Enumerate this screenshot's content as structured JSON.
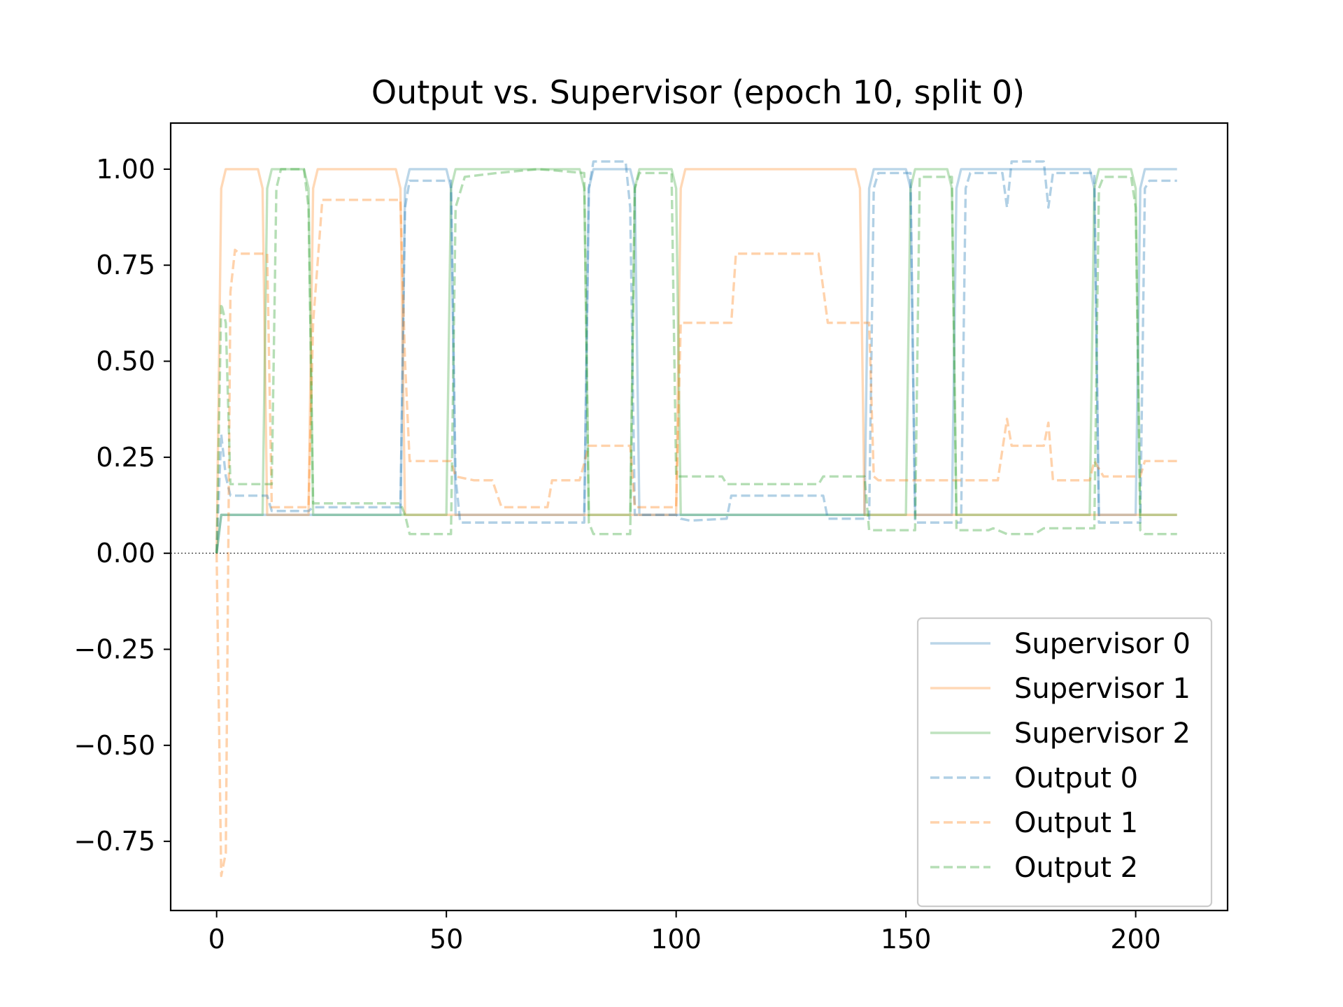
{
  "chart_data": {
    "type": "line",
    "title": "Output vs. Supervisor (epoch 10, split 0)",
    "xlabel": "",
    "ylabel": "",
    "xlim": [
      -10,
      220
    ],
    "ylim": [
      -0.93,
      1.12
    ],
    "xticks": [
      {
        "value": 0,
        "label": "0"
      },
      {
        "value": 50,
        "label": "50"
      },
      {
        "value": 100,
        "label": "100"
      },
      {
        "value": 150,
        "label": "150"
      },
      {
        "value": 200,
        "label": "200"
      }
    ],
    "yticks": [
      {
        "value": 1.0,
        "label": "1.00"
      },
      {
        "value": 0.75,
        "label": "0.75"
      },
      {
        "value": 0.5,
        "label": "0.50"
      },
      {
        "value": 0.25,
        "label": "0.25"
      },
      {
        "value": 0.0,
        "label": "0.00"
      },
      {
        "value": -0.25,
        "label": "−0.25"
      },
      {
        "value": -0.5,
        "label": "−0.50"
      },
      {
        "value": -0.75,
        "label": "−0.75"
      }
    ],
    "zero_line": true,
    "grid": false,
    "legend_position": "lower-right",
    "series": [
      {
        "name": "Supervisor 0",
        "color": "#1f77b4",
        "dash": "solid",
        "opacity": 0.3,
        "points": [
          [
            0,
            0
          ],
          [
            1,
            0.1
          ],
          [
            40,
            0.1
          ],
          [
            41,
            0.95
          ],
          [
            42,
            1
          ],
          [
            50,
            1
          ],
          [
            51,
            0.95
          ],
          [
            52,
            0.1
          ],
          [
            80,
            0.1
          ],
          [
            81,
            0.95
          ],
          [
            82,
            1
          ],
          [
            90,
            1
          ],
          [
            91,
            0.95
          ],
          [
            92,
            0.1
          ],
          [
            141,
            0.1
          ],
          [
            142,
            0.95
          ],
          [
            143,
            1
          ],
          [
            150,
            1
          ],
          [
            151,
            0.95
          ],
          [
            152,
            0.1
          ],
          [
            160,
            0.1
          ],
          [
            161,
            0.95
          ],
          [
            162,
            1
          ],
          [
            190,
            1
          ],
          [
            191,
            0.95
          ],
          [
            192,
            0.1
          ],
          [
            200,
            0.1
          ],
          [
            201,
            0.95
          ],
          [
            202,
            1
          ],
          [
            209,
            1
          ]
        ]
      },
      {
        "name": "Supervisor 1",
        "color": "#ff7f0e",
        "dash": "solid",
        "opacity": 0.3,
        "points": [
          [
            0,
            0
          ],
          [
            1,
            0.95
          ],
          [
            2,
            1
          ],
          [
            9,
            1
          ],
          [
            10,
            0.95
          ],
          [
            11,
            0.1
          ],
          [
            20,
            0.1
          ],
          [
            21,
            0.95
          ],
          [
            22,
            1
          ],
          [
            39,
            1
          ],
          [
            40,
            0.95
          ],
          [
            41,
            0.1
          ],
          [
            100,
            0.1
          ],
          [
            101,
            0.95
          ],
          [
            102,
            1
          ],
          [
            139,
            1
          ],
          [
            140,
            0.95
          ],
          [
            141,
            0.1
          ],
          [
            209,
            0.1
          ]
        ]
      },
      {
        "name": "Supervisor 2",
        "color": "#2ca02c",
        "dash": "solid",
        "opacity": 0.3,
        "points": [
          [
            0,
            0
          ],
          [
            1,
            0.1
          ],
          [
            10,
            0.1
          ],
          [
            11,
            0.95
          ],
          [
            12,
            1
          ],
          [
            19,
            1
          ],
          [
            20,
            0.95
          ],
          [
            21,
            0.1
          ],
          [
            50,
            0.1
          ],
          [
            51,
            0.95
          ],
          [
            52,
            1
          ],
          [
            79,
            1
          ],
          [
            80,
            0.95
          ],
          [
            81,
            0.1
          ],
          [
            90,
            0.1
          ],
          [
            91,
            0.95
          ],
          [
            92,
            1
          ],
          [
            99,
            1
          ],
          [
            100,
            0.95
          ],
          [
            101,
            0.1
          ],
          [
            150,
            0.1
          ],
          [
            151,
            0.95
          ],
          [
            152,
            1
          ],
          [
            159,
            1
          ],
          [
            160,
            0.95
          ],
          [
            161,
            0.1
          ],
          [
            190,
            0.1
          ],
          [
            191,
            0.95
          ],
          [
            192,
            1
          ],
          [
            199,
            1
          ],
          [
            200,
            0.95
          ],
          [
            201,
            0.1
          ],
          [
            209,
            0.1
          ]
        ]
      },
      {
        "name": "Output 0",
        "color": "#1f77b4",
        "dash": "dashed",
        "opacity": 0.35,
        "points": [
          [
            0,
            0
          ],
          [
            1,
            0.31
          ],
          [
            2,
            0.2
          ],
          [
            3,
            0.15
          ],
          [
            11,
            0.15
          ],
          [
            12,
            0.11
          ],
          [
            20,
            0.11
          ],
          [
            21,
            0.12
          ],
          [
            40,
            0.12
          ],
          [
            41,
            0.9
          ],
          [
            42,
            0.97
          ],
          [
            51,
            0.97
          ],
          [
            52,
            0.2
          ],
          [
            53,
            0.08
          ],
          [
            80,
            0.08
          ],
          [
            81,
            0.95
          ],
          [
            82,
            1.02
          ],
          [
            89,
            1.02
          ],
          [
            90,
            0.9
          ],
          [
            91,
            0.1
          ],
          [
            100,
            0.1
          ],
          [
            101,
            0.09
          ],
          [
            103,
            0.085
          ],
          [
            111,
            0.09
          ],
          [
            112,
            0.15
          ],
          [
            132,
            0.15
          ],
          [
            133,
            0.09
          ],
          [
            142,
            0.09
          ],
          [
            143,
            0.95
          ],
          [
            144,
            0.99
          ],
          [
            151,
            0.99
          ],
          [
            152,
            0.08
          ],
          [
            162,
            0.08
          ],
          [
            163,
            0.95
          ],
          [
            164,
            0.99
          ],
          [
            171,
            0.99
          ],
          [
            172,
            0.9
          ],
          [
            173,
            1.02
          ],
          [
            180,
            1.02
          ],
          [
            181,
            0.9
          ],
          [
            182,
            0.99
          ],
          [
            191,
            0.99
          ],
          [
            192,
            0.08
          ],
          [
            201,
            0.08
          ],
          [
            202,
            0.95
          ],
          [
            203,
            0.97
          ],
          [
            209,
            0.97
          ]
        ]
      },
      {
        "name": "Output 1",
        "color": "#ff7f0e",
        "dash": "dashed",
        "opacity": 0.35,
        "points": [
          [
            0,
            0
          ],
          [
            1,
            -0.84
          ],
          [
            2,
            -0.78
          ],
          [
            3,
            0.68
          ],
          [
            4,
            0.79
          ],
          [
            5,
            0.78
          ],
          [
            11,
            0.78
          ],
          [
            12,
            0.12
          ],
          [
            20,
            0.12
          ],
          [
            21,
            0.6
          ],
          [
            23,
            0.92
          ],
          [
            40,
            0.92
          ],
          [
            41,
            0.5
          ],
          [
            42,
            0.24
          ],
          [
            51,
            0.24
          ],
          [
            52,
            0.2
          ],
          [
            56,
            0.19
          ],
          [
            60,
            0.19
          ],
          [
            62,
            0.12
          ],
          [
            72,
            0.12
          ],
          [
            73,
            0.19
          ],
          [
            79,
            0.19
          ],
          [
            81,
            0.28
          ],
          [
            90,
            0.28
          ],
          [
            91,
            0.12
          ],
          [
            100,
            0.12
          ],
          [
            101,
            0.6
          ],
          [
            103,
            0.6
          ],
          [
            112,
            0.6
          ],
          [
            113,
            0.78
          ],
          [
            131,
            0.78
          ],
          [
            133,
            0.6
          ],
          [
            142,
            0.6
          ],
          [
            143,
            0.2
          ],
          [
            144,
            0.19
          ],
          [
            170,
            0.19
          ],
          [
            172,
            0.35
          ],
          [
            173,
            0.28
          ],
          [
            180,
            0.28
          ],
          [
            181,
            0.34
          ],
          [
            182,
            0.19
          ],
          [
            190,
            0.19
          ],
          [
            191,
            0.24
          ],
          [
            193,
            0.2
          ],
          [
            201,
            0.2
          ],
          [
            202,
            0.24
          ],
          [
            209,
            0.24
          ]
        ]
      },
      {
        "name": "Output 2",
        "color": "#2ca02c",
        "dash": "dashed",
        "opacity": 0.35,
        "points": [
          [
            0,
            0
          ],
          [
            1,
            0.65
          ],
          [
            2,
            0.6
          ],
          [
            3,
            0.18
          ],
          [
            12,
            0.18
          ],
          [
            13,
            0.95
          ],
          [
            14,
            1.0
          ],
          [
            19,
            1.0
          ],
          [
            20,
            0.9
          ],
          [
            21,
            0.13
          ],
          [
            40,
            0.13
          ],
          [
            41,
            0.1
          ],
          [
            42,
            0.05
          ],
          [
            51,
            0.05
          ],
          [
            52,
            0.9
          ],
          [
            54,
            0.98
          ],
          [
            61,
            0.99
          ],
          [
            70,
            1.0
          ],
          [
            80,
            0.99
          ],
          [
            81,
            0.08
          ],
          [
            82,
            0.05
          ],
          [
            90,
            0.05
          ],
          [
            91,
            0.95
          ],
          [
            92,
            0.99
          ],
          [
            99,
            0.99
          ],
          [
            100,
            0.2
          ],
          [
            101,
            0.2
          ],
          [
            110,
            0.2
          ],
          [
            111,
            0.18
          ],
          [
            131,
            0.18
          ],
          [
            132,
            0.2
          ],
          [
            141,
            0.2
          ],
          [
            142,
            0.06
          ],
          [
            152,
            0.06
          ],
          [
            153,
            0.98
          ],
          [
            160,
            0.98
          ],
          [
            161,
            0.06
          ],
          [
            168,
            0.06
          ],
          [
            169,
            0.065
          ],
          [
            170,
            0.06
          ],
          [
            172,
            0.05
          ],
          [
            178,
            0.05
          ],
          [
            180,
            0.065
          ],
          [
            191,
            0.065
          ],
          [
            192,
            0.95
          ],
          [
            193,
            0.98
          ],
          [
            199,
            0.98
          ],
          [
            200,
            0.9
          ],
          [
            201,
            0.06
          ],
          [
            202,
            0.05
          ],
          [
            209,
            0.05
          ]
        ]
      }
    ]
  }
}
